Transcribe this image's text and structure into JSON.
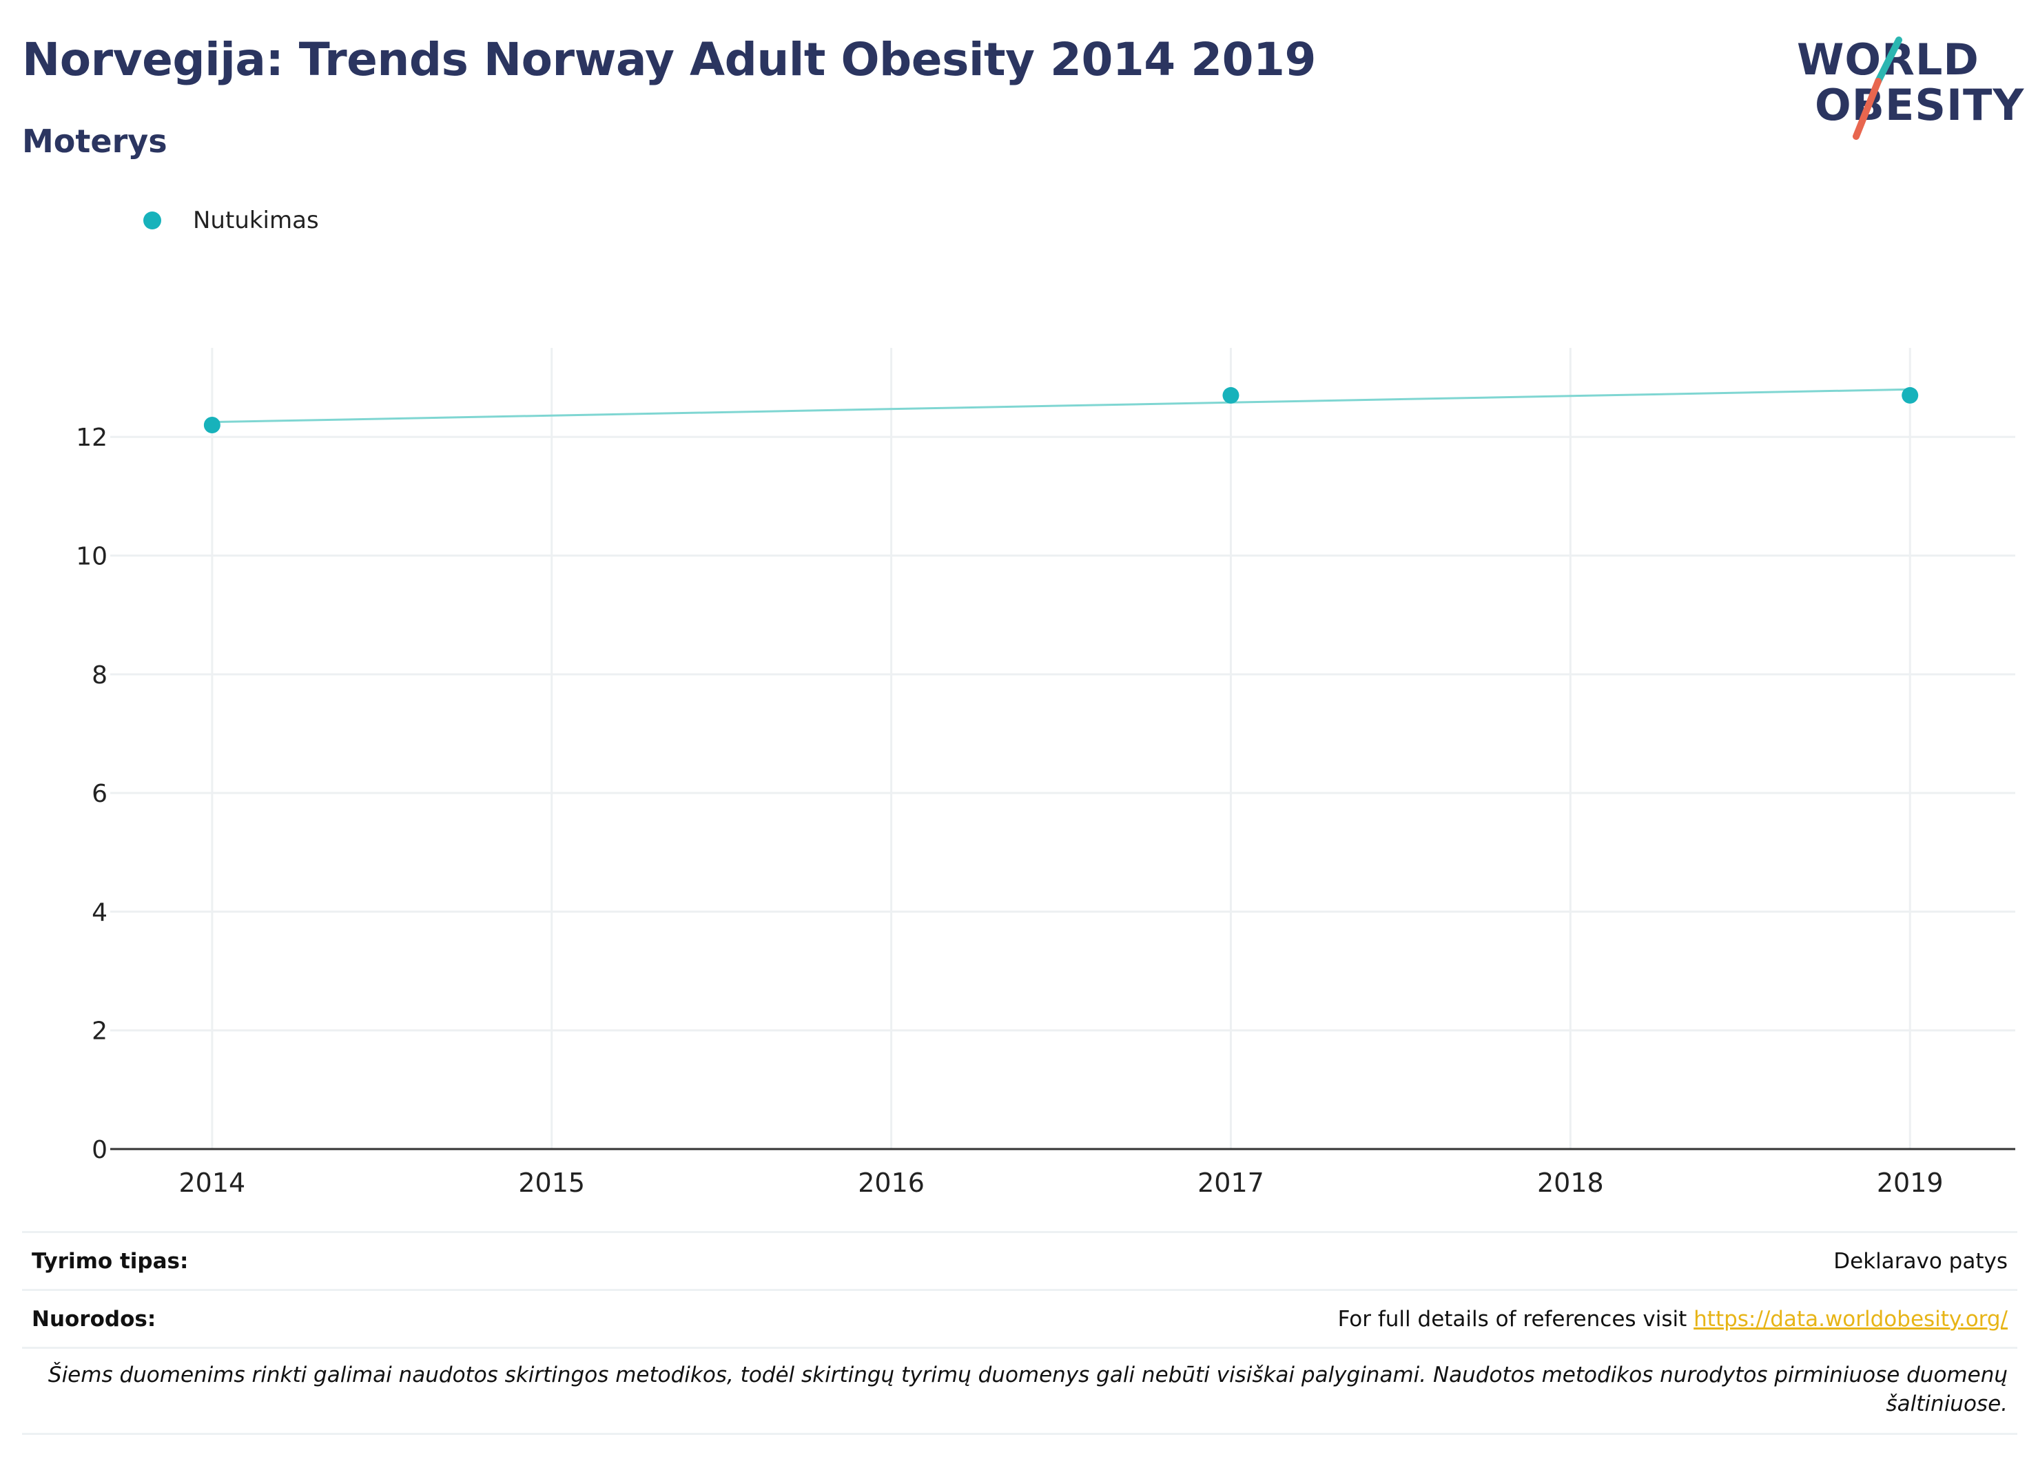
{
  "header": {
    "title": "Norvegija: Trends Norway Adult Obesity 2014 2019",
    "subtitle": "Moterys"
  },
  "logo": {
    "line1": "WORLD",
    "line2": "OBESITY",
    "slash_colors": [
      "#2bb6b1",
      "#e8664f"
    ]
  },
  "colors": {
    "title": "#2b3560",
    "series": "#17b2bb",
    "trend": "#7fd6d2",
    "grid": "#edf0f2",
    "link": "#e7b416"
  },
  "chart_data": {
    "type": "scatter",
    "title": "Norvegija: Trends Norway Adult Obesity 2014 2019",
    "subtitle": "Moterys",
    "xlabel": "",
    "ylabel": "",
    "x_ticks": [
      2014,
      2015,
      2016,
      2017,
      2018,
      2019
    ],
    "y_ticks": [
      0,
      2,
      4,
      6,
      8,
      10,
      12
    ],
    "xlim": [
      2013.7,
      2019.31
    ],
    "ylim": [
      0,
      13.5
    ],
    "grid": true,
    "legend_position": "top-left",
    "series": [
      {
        "name": "Nutukimas",
        "x": [
          2014,
          2017,
          2019
        ],
        "y": [
          12.2,
          12.7,
          12.7
        ],
        "trendline": [
          {
            "x": 2014,
            "y": 12.25
          },
          {
            "x": 2019,
            "y": 12.8
          }
        ]
      }
    ]
  },
  "footer": {
    "survey_type_label": "Tyrimo tipas:",
    "survey_type_value": "Deklaravo patys",
    "references_label": "Nuorodos:",
    "references_text": "For full details of references visit ",
    "references_link": "https://data.worldobesity.org/",
    "note": "Šiems duomenims rinkti galimai naudotos skirtingos metodikos, todėl skirtingų tyrimų duomenys gali nebūti visiškai palyginami. Naudotos metodikos nurodytos pirminiuose duomenų šaltiniuose."
  }
}
